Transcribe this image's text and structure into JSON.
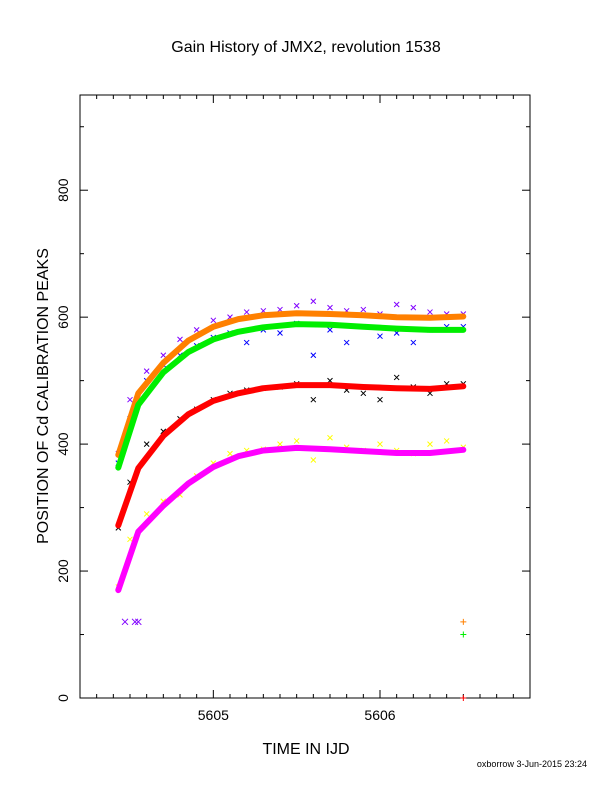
{
  "chart_data": {
    "type": "scatter",
    "title": "Gain History of JMX2, revolution 1538",
    "xlabel": "TIME IN IJD",
    "ylabel": "POSITION OF Cd CALIBRATION PEAKS",
    "footer": "oxborrow  3-Jun-2015 23:24",
    "xlim": [
      5604.2,
      5606.9
    ],
    "ylim": [
      0,
      950
    ],
    "x_ticks": [
      5605,
      5606
    ],
    "y_ticks": [
      0,
      200,
      400,
      600,
      800
    ],
    "grid": false,
    "smooth_fits": [
      {
        "color": "#ff8000",
        "x": [
          5604.43,
          5604.55,
          5604.7,
          5604.85,
          5605.0,
          5605.15,
          5605.3,
          5605.5,
          5605.7,
          5605.9,
          5606.1,
          5606.3,
          5606.5
        ],
        "values": [
          383,
          480,
          528,
          563,
          585,
          597,
          603,
          606,
          605,
          603,
          600,
          599,
          601
        ]
      },
      {
        "color": "#00ee00",
        "x": [
          5604.43,
          5604.55,
          5604.7,
          5604.85,
          5605.0,
          5605.15,
          5605.3,
          5605.5,
          5605.7,
          5605.9,
          5606.1,
          5606.3,
          5606.5
        ],
        "values": [
          363,
          462,
          513,
          545,
          565,
          577,
          584,
          589,
          588,
          585,
          582,
          580,
          580
        ]
      },
      {
        "color": "#ff0000",
        "x": [
          5604.43,
          5604.55,
          5604.7,
          5604.85,
          5605.0,
          5605.15,
          5605.3,
          5605.5,
          5605.7,
          5605.9,
          5606.1,
          5606.3,
          5606.5
        ],
        "values": [
          272,
          362,
          413,
          447,
          468,
          480,
          488,
          493,
          493,
          490,
          488,
          487,
          491
        ]
      },
      {
        "color": "#ff00ff",
        "x": [
          5604.43,
          5604.55,
          5604.7,
          5604.85,
          5605.0,
          5605.15,
          5605.3,
          5605.5,
          5605.7,
          5605.9,
          5606.1,
          5606.3,
          5606.5
        ],
        "values": [
          170,
          262,
          303,
          338,
          364,
          381,
          390,
          394,
          392,
          389,
          386,
          386,
          391
        ]
      }
    ],
    "scatter_series": [
      {
        "color": "#8000ff",
        "x": [
          5604.43,
          5604.5,
          5604.6,
          5604.7,
          5604.8,
          5604.9,
          5605.0,
          5605.1,
          5605.2,
          5605.3,
          5605.4,
          5605.5,
          5605.6,
          5605.7,
          5605.8,
          5605.9,
          5606.0,
          5606.1,
          5606.2,
          5606.3,
          5606.4,
          5606.5
        ],
        "values": [
          385,
          470,
          515,
          540,
          565,
          580,
          595,
          600,
          608,
          610,
          612,
          618,
          625,
          615,
          610,
          612,
          605,
          620,
          615,
          608,
          605,
          605
        ]
      },
      {
        "color": "#0000ff",
        "x": [
          5604.43,
          5604.5,
          5604.6,
          5604.7,
          5604.8,
          5604.9,
          5605.0,
          5605.1,
          5605.2,
          5605.3,
          5605.4,
          5605.5,
          5605.6,
          5605.7,
          5605.8,
          5605.9,
          5606.0,
          5606.1,
          5606.2,
          5606.3,
          5606.4,
          5606.5
        ],
        "values": [
          370,
          440,
          500,
          525,
          540,
          555,
          568,
          575,
          560,
          580,
          575,
          590,
          540,
          580,
          560,
          585,
          570,
          575,
          560,
          580,
          585,
          585
        ]
      },
      {
        "color": "#000000",
        "x": [
          5604.43,
          5604.5,
          5604.6,
          5604.7,
          5604.8,
          5604.9,
          5605.0,
          5605.1,
          5605.2,
          5605.3,
          5605.4,
          5605.5,
          5605.6,
          5605.7,
          5605.8,
          5605.9,
          5606.0,
          5606.1,
          5606.2,
          5606.3,
          5606.4,
          5606.5
        ],
        "values": [
          268,
          340,
          400,
          420,
          440,
          455,
          470,
          480,
          485,
          488,
          490,
          495,
          470,
          500,
          485,
          480,
          470,
          505,
          490,
          480,
          495,
          495
        ]
      },
      {
        "color": "#ffff00",
        "x": [
          5604.43,
          5604.5,
          5604.6,
          5604.7,
          5604.8,
          5604.9,
          5605.0,
          5605.1,
          5605.2,
          5605.3,
          5605.4,
          5605.5,
          5605.6,
          5605.7,
          5605.8,
          5605.9,
          5606.0,
          5606.1,
          5606.2,
          5606.3,
          5606.4,
          5606.5
        ],
        "values": [
          175,
          250,
          290,
          310,
          320,
          350,
          370,
          385,
          390,
          392,
          400,
          405,
          375,
          410,
          395,
          390,
          400,
          390,
          385,
          400,
          405,
          395
        ]
      }
    ],
    "outliers": [
      {
        "color": "#8000ff",
        "x": 5604.47,
        "value": 120
      },
      {
        "color": "#8000ff",
        "x": 5604.53,
        "value": 120
      },
      {
        "color": "#8000ff",
        "x": 5604.55,
        "value": 120
      },
      {
        "color": "#ff8000",
        "x": 5606.5,
        "value": 120
      },
      {
        "color": "#00ee00",
        "x": 5606.5,
        "value": 100
      },
      {
        "color": "#ff0000",
        "x": 5606.5,
        "value": 0
      }
    ]
  }
}
